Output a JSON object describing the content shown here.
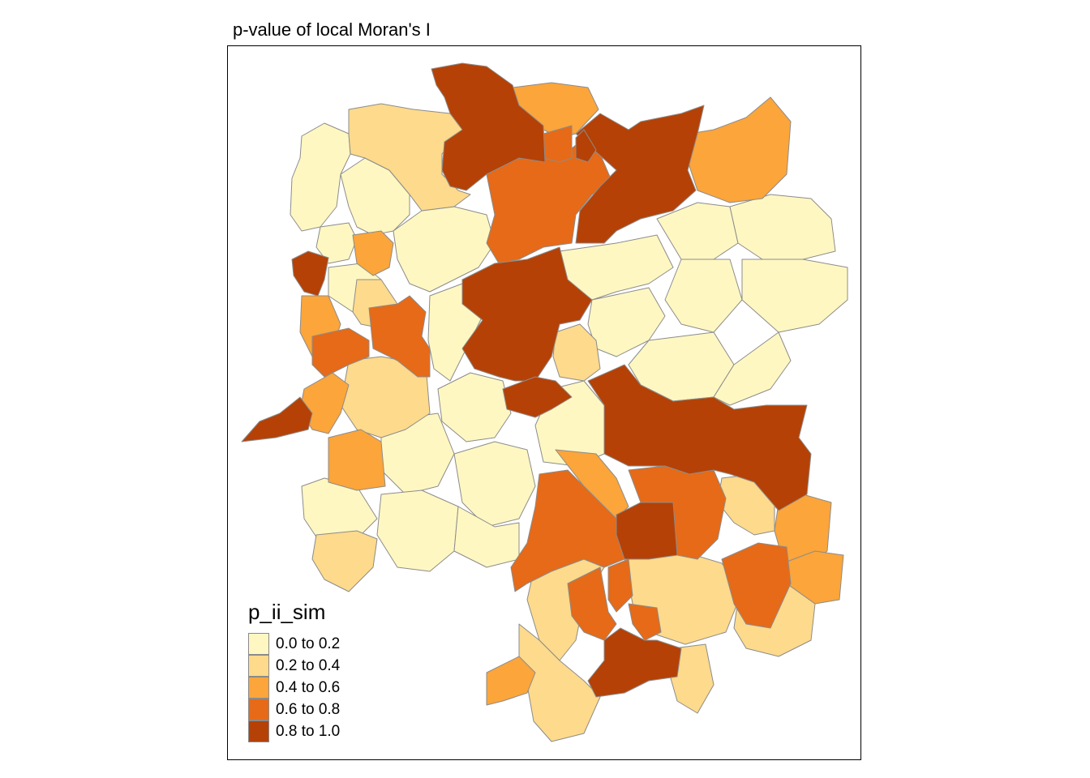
{
  "title": "p-value of local Moran's I",
  "legend": {
    "title": "p_ii_sim",
    "items": [
      {
        "label": "0.0 to 0.2",
        "color": "#FFF7C2"
      },
      {
        "label": "0.2 to 0.4",
        "color": "#FDDA8C"
      },
      {
        "label": "0.4 to 0.6",
        "color": "#FBA53A"
      },
      {
        "label": "0.6 to 0.8",
        "color": "#E66A17"
      },
      {
        "label": "0.8 to 1.0",
        "color": "#B54106"
      }
    ]
  },
  "colors": {
    "border": "#8c8c8c",
    "frame": "#000000"
  }
}
